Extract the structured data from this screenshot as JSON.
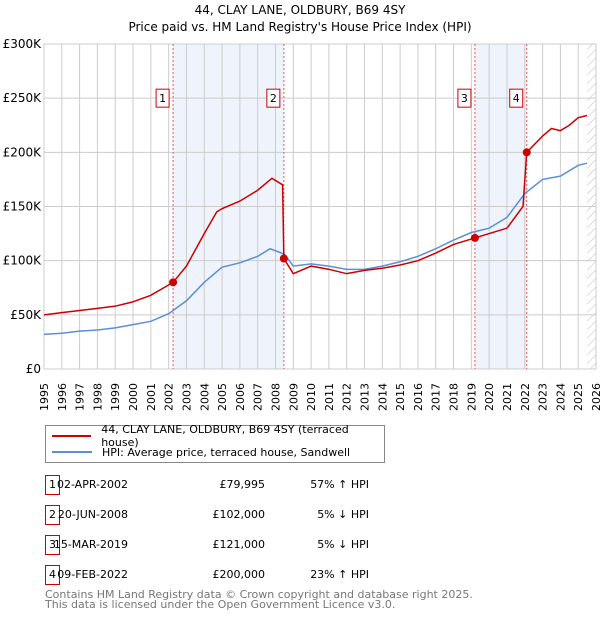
{
  "chart_data": {
    "type": "line",
    "title": "44, CLAY LANE, OLDBURY, B69 4SY",
    "subtitle": "Price paid vs. HM Land Registry's House Price Index (HPI)",
    "xlim": [
      1995,
      2026
    ],
    "ylim": [
      0,
      300000
    ],
    "x_ticks": [
      "1995",
      "1996",
      "1997",
      "1998",
      "1999",
      "2000",
      "2001",
      "2002",
      "2003",
      "2004",
      "2005",
      "2006",
      "2007",
      "2008",
      "2009",
      "2010",
      "2011",
      "2012",
      "2013",
      "2014",
      "2015",
      "2016",
      "2017",
      "2018",
      "2019",
      "2020",
      "2021",
      "2022",
      "2023",
      "2024",
      "2025",
      "2026"
    ],
    "y_ticks": [
      {
        "v": 0,
        "label": "£0"
      },
      {
        "v": 50000,
        "label": "£50K"
      },
      {
        "v": 100000,
        "label": "£100K"
      },
      {
        "v": 150000,
        "label": "£150K"
      },
      {
        "v": 200000,
        "label": "£200K"
      },
      {
        "v": 250000,
        "label": "£250K"
      },
      {
        "v": 300000,
        "label": "£300K"
      }
    ],
    "series": [
      {
        "name": "44, CLAY LANE, OLDBURY, B69 4SY (terraced house)",
        "color": "#cc0000",
        "points": [
          [
            1995,
            50000
          ],
          [
            1996,
            52000
          ],
          [
            1997,
            54000
          ],
          [
            1998,
            56000
          ],
          [
            1999,
            58000
          ],
          [
            2000,
            62000
          ],
          [
            2001,
            68000
          ],
          [
            2002.25,
            79995
          ],
          [
            2003,
            95000
          ],
          [
            2004,
            125000
          ],
          [
            2004.7,
            145000
          ],
          [
            2005,
            148000
          ],
          [
            2006,
            155000
          ],
          [
            2007,
            165000
          ],
          [
            2007.8,
            176000
          ],
          [
            2008.4,
            170000
          ],
          [
            2008.47,
            102000
          ],
          [
            2009,
            88000
          ],
          [
            2010,
            95000
          ],
          [
            2011,
            92000
          ],
          [
            2012,
            88000
          ],
          [
            2013,
            91000
          ],
          [
            2014,
            93000
          ],
          [
            2015,
            96000
          ],
          [
            2016,
            100000
          ],
          [
            2017,
            107000
          ],
          [
            2018,
            115000
          ],
          [
            2019.2,
            121000
          ],
          [
            2020,
            125000
          ],
          [
            2021,
            130000
          ],
          [
            2021.9,
            150000
          ],
          [
            2022.11,
            200000
          ],
          [
            2023,
            215000
          ],
          [
            2023.5,
            222000
          ],
          [
            2024,
            220000
          ],
          [
            2024.5,
            225000
          ],
          [
            2025,
            232000
          ],
          [
            2025.5,
            234000
          ]
        ]
      },
      {
        "name": "HPI: Average price, terraced house, Sandwell",
        "color": "#5b8fd6",
        "points": [
          [
            1995,
            32000
          ],
          [
            1996,
            33000
          ],
          [
            1997,
            35000
          ],
          [
            1998,
            36000
          ],
          [
            1999,
            38000
          ],
          [
            2000,
            41000
          ],
          [
            2001,
            44000
          ],
          [
            2002,
            51000
          ],
          [
            2003,
            63000
          ],
          [
            2004,
            80000
          ],
          [
            2005,
            94000
          ],
          [
            2006,
            98000
          ],
          [
            2007,
            104000
          ],
          [
            2007.7,
            111000
          ],
          [
            2008.5,
            106000
          ],
          [
            2009,
            95000
          ],
          [
            2010,
            97000
          ],
          [
            2011,
            95000
          ],
          [
            2012,
            92000
          ],
          [
            2013,
            92000
          ],
          [
            2014,
            95000
          ],
          [
            2015,
            99000
          ],
          [
            2016,
            104000
          ],
          [
            2017,
            111000
          ],
          [
            2018,
            119000
          ],
          [
            2019,
            126000
          ],
          [
            2020,
            130000
          ],
          [
            2021,
            140000
          ],
          [
            2022,
            162000
          ],
          [
            2023,
            175000
          ],
          [
            2024,
            178000
          ],
          [
            2025,
            188000
          ],
          [
            2025.5,
            190000
          ]
        ]
      }
    ],
    "sales": [
      {
        "n": "1",
        "x": 2002.25,
        "y": 79995,
        "date": "02-APR-2002",
        "price": "£79,995",
        "hpi": "57% ↑ HPI"
      },
      {
        "n": "2",
        "x": 2008.47,
        "y": 102000,
        "date": "20-JUN-2008",
        "price": "£102,000",
        "hpi": "5% ↓ HPI"
      },
      {
        "n": "3",
        "x": 2019.2,
        "y": 121000,
        "date": "15-MAR-2019",
        "price": "£121,000",
        "hpi": "5% ↓ HPI"
      },
      {
        "n": "4",
        "x": 2022.11,
        "y": 200000,
        "date": "09-FEB-2022",
        "price": "£200,000",
        "hpi": "23% ↑ HPI"
      }
    ],
    "shaded_ranges": [
      [
        2002.25,
        2008.47
      ],
      [
        2019.2,
        2022.11
      ]
    ],
    "forecast_from": 2025.5
  },
  "footer": {
    "line1": "Contains HM Land Registry data © Crown copyright and database right 2025.",
    "line2": "This data is licensed under the Open Government Licence v3.0."
  }
}
